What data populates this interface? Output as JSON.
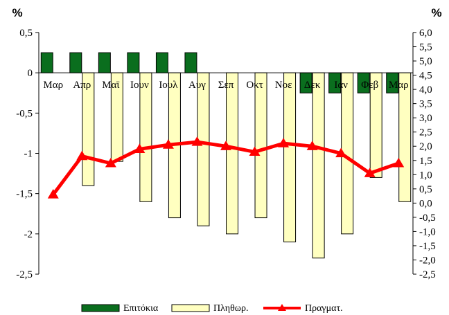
{
  "chart_data": {
    "type": "bar",
    "categories": [
      "Μαρ",
      "Απρ",
      "Μαϊ",
      "Ιουν",
      "Ιουλ",
      "Αυγ",
      "Σεπ",
      "Οκτ",
      "Νοε",
      "Δεκ",
      "Ιαν",
      "Φεβ",
      "Μαρ"
    ],
    "left_axis": {
      "unit": "%",
      "ylim": [
        -2.5,
        0.5
      ],
      "ticks": [
        "0,5",
        "0",
        "-0,5",
        "-1",
        "-1,5",
        "-2",
        "-2,5"
      ],
      "tick_values": [
        0.5,
        0,
        -0.5,
        -1,
        -1.5,
        -2,
        -2.5
      ]
    },
    "right_axis": {
      "unit": "%",
      "ylim": [
        -2.5,
        6.0
      ],
      "ticks": [
        "6,0",
        "5,5",
        "5,0",
        "4,5",
        "4,0",
        "3,5",
        "3,0",
        "2,5",
        "2,0",
        "1,5",
        "1,0",
        "0,5",
        "0,0",
        "-0,5",
        "-1,0",
        "-1,5",
        "-2,0",
        "-2,5"
      ],
      "tick_values": [
        6.0,
        5.5,
        5.0,
        4.5,
        4.0,
        3.5,
        3.0,
        2.5,
        2.0,
        1.5,
        1.0,
        0.5,
        0.0,
        -0.5,
        -1.0,
        -1.5,
        -2.0,
        -2.5
      ]
    },
    "series": [
      {
        "name": "Επιτόκια",
        "kind": "bar",
        "axis": "left",
        "color": "#0a6e1e",
        "values": [
          0.25,
          0.25,
          0.25,
          0.25,
          0.25,
          0.25,
          0,
          0,
          0,
          -0.25,
          -0.25,
          -0.25,
          -0.25
        ]
      },
      {
        "name": "Πληθωρ.",
        "kind": "bar",
        "axis": "left",
        "color": "#ffffc0",
        "values": [
          0,
          -1.4,
          -1.1,
          -1.6,
          -1.8,
          -1.9,
          -2.0,
          -1.8,
          -2.1,
          -2.3,
          -2.0,
          -1.3,
          -1.6
        ]
      },
      {
        "name": "Πραγματ.",
        "kind": "line",
        "axis": "right",
        "color": "#ff0000",
        "values": [
          0.3,
          1.65,
          1.4,
          1.9,
          2.05,
          2.15,
          2.0,
          1.8,
          2.1,
          2.0,
          1.75,
          1.05,
          1.4
        ]
      }
    ],
    "legend_position": "bottom",
    "grid": false
  }
}
